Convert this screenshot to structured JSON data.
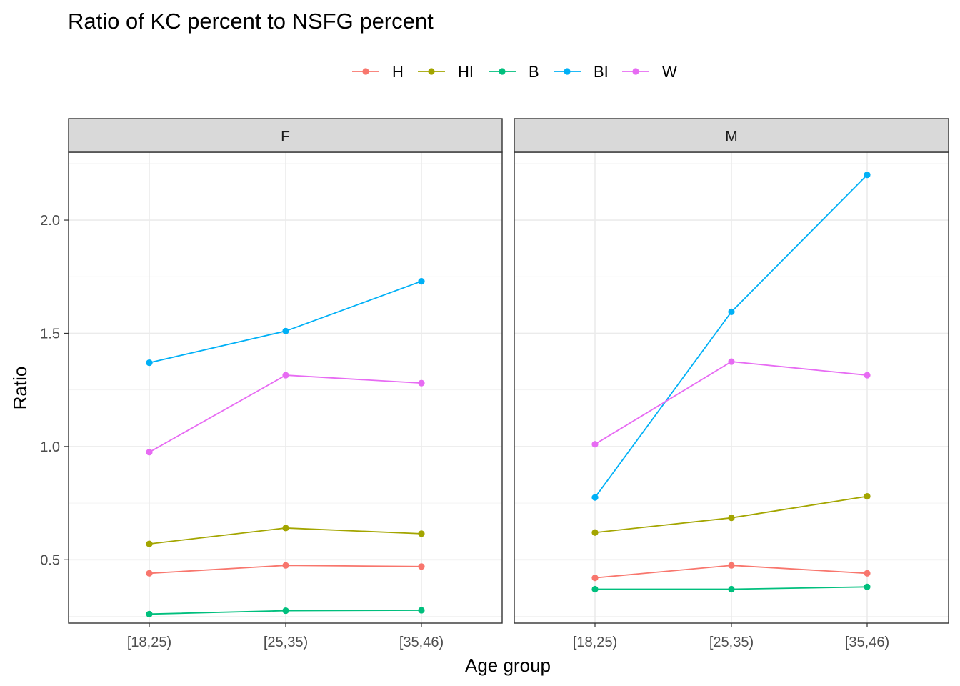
{
  "chart_data": {
    "type": "line",
    "title": "Ratio of KC percent to NSFG percent",
    "xlabel": "Age group",
    "ylabel": "Ratio",
    "categories": [
      "[18,25)",
      "[25,35)",
      "[35,46)"
    ],
    "ylim": [
      0.22,
      2.3
    ],
    "yticks": [
      0.5,
      1.0,
      1.5,
      2.0
    ],
    "ytick_labels": [
      "0.5",
      "1.0",
      "1.5",
      "2.0"
    ],
    "grid": true,
    "legend_position": "top",
    "colors": {
      "H": "#F8766D",
      "HI": "#A3A500",
      "B": "#00BF7D",
      "BI": "#00B0F6",
      "W": "#E76BF3"
    },
    "facets": [
      {
        "label": "F",
        "series": [
          {
            "name": "H",
            "values": [
              0.44,
              0.475,
              0.47
            ]
          },
          {
            "name": "HI",
            "values": [
              0.57,
              0.64,
              0.615
            ]
          },
          {
            "name": "B",
            "values": [
              0.26,
              0.275,
              0.277
            ]
          },
          {
            "name": "BI",
            "values": [
              1.37,
              1.51,
              1.73
            ]
          },
          {
            "name": "W",
            "values": [
              0.975,
              1.315,
              1.28
            ]
          }
        ]
      },
      {
        "label": "M",
        "series": [
          {
            "name": "H",
            "values": [
              0.42,
              0.475,
              0.44
            ]
          },
          {
            "name": "HI",
            "values": [
              0.62,
              0.685,
              0.78
            ]
          },
          {
            "name": "B",
            "values": [
              0.37,
              0.37,
              0.38
            ]
          },
          {
            "name": "BI",
            "values": [
              0.775,
              1.595,
              2.2
            ]
          },
          {
            "name": "W",
            "values": [
              1.01,
              1.375,
              1.315
            ]
          }
        ]
      }
    ]
  }
}
